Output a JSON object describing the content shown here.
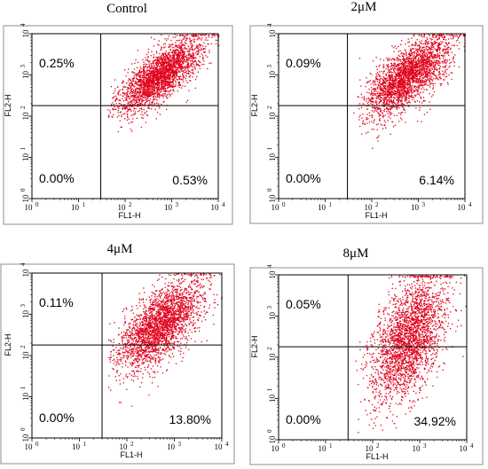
{
  "chart_data": [
    {
      "type": "scatter",
      "title": "Control",
      "xlabel": "FL1-H",
      "ylabel": "FL2-H",
      "xscale": "log",
      "yscale": "log",
      "xlim": [
        1,
        10000
      ],
      "ylim": [
        1,
        10000
      ],
      "tick_labels": [
        "10",
        "10",
        "10",
        "10",
        "10"
      ],
      "tick_exponents": [
        "0",
        "1",
        "2",
        "3",
        "4"
      ],
      "gate": {
        "x": 30,
        "y": 180
      },
      "quadrants": {
        "upper_left": "0.25%",
        "lower_left": "0.00%",
        "lower_right": "0.53%"
      },
      "cloud": {
        "x_center_log": 2.75,
        "y_center_log": 3.0,
        "x_spread": 0.45,
        "y_spread": 0.45,
        "correlation": 0.75,
        "color": "#e0001b"
      }
    },
    {
      "type": "scatter",
      "title": "2μM",
      "xlabel": "FL1-H",
      "ylabel": "FL2-H",
      "xscale": "log",
      "yscale": "log",
      "xlim": [
        1,
        10000
      ],
      "ylim": [
        1,
        10000
      ],
      "tick_labels": [
        "10",
        "10",
        "10",
        "10",
        "10"
      ],
      "tick_exponents": [
        "0",
        "1",
        "2",
        "3",
        "4"
      ],
      "gate": {
        "x": 30,
        "y": 180
      },
      "quadrants": {
        "upper_left": "0.09%",
        "lower_left": "0.00%",
        "lower_right": "6.14%"
      },
      "cloud": {
        "x_center_log": 2.75,
        "y_center_log": 2.95,
        "x_spread": 0.45,
        "y_spread": 0.5,
        "correlation": 0.7,
        "color": "#e0001b"
      }
    },
    {
      "type": "scatter",
      "title": "4μM",
      "xlabel": "FL1-H",
      "ylabel": "FL2-H",
      "xscale": "log",
      "yscale": "log",
      "xlim": [
        1,
        10000
      ],
      "ylim": [
        1,
        10000
      ],
      "tick_labels": [
        "10",
        "10",
        "10",
        "10",
        "10"
      ],
      "tick_exponents": [
        "0",
        "1",
        "2",
        "3",
        "4"
      ],
      "gate": {
        "x": 30,
        "y": 180
      },
      "quadrants": {
        "upper_left": "0.11%",
        "lower_left": "0.00%",
        "lower_right": "13.80%"
      },
      "cloud": {
        "x_center_log": 2.7,
        "y_center_log": 2.75,
        "x_spread": 0.45,
        "y_spread": 0.55,
        "correlation": 0.65,
        "color": "#e0001b"
      }
    },
    {
      "type": "scatter",
      "title": "8μM",
      "xlabel": "FL1-H",
      "ylabel": "FL2-H",
      "xscale": "log",
      "yscale": "log",
      "xlim": [
        1,
        10000
      ],
      "ylim": [
        1,
        10000
      ],
      "tick_labels": [
        "10",
        "10",
        "10",
        "10",
        "10"
      ],
      "tick_exponents": [
        "0",
        "1",
        "2",
        "3",
        "4"
      ],
      "gate": {
        "x": 30,
        "y": 180
      },
      "quadrants": {
        "upper_left": "0.05%",
        "lower_left": "0.00%",
        "lower_right": "34.92%"
      },
      "cloud": {
        "x_center_log": 2.75,
        "y_center_log": 2.45,
        "x_spread": 0.4,
        "y_spread": 0.75,
        "correlation": 0.5,
        "color": "#e0001b"
      }
    }
  ]
}
